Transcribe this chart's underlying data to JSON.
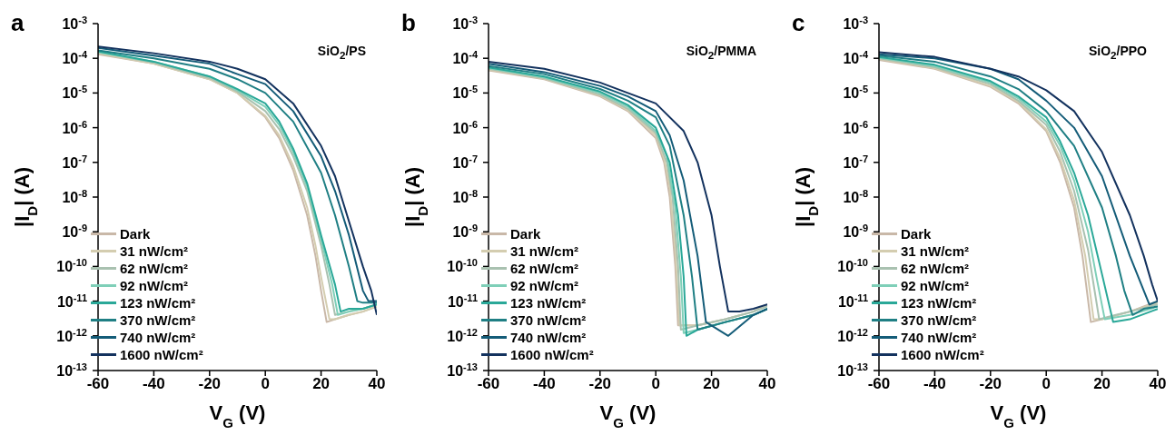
{
  "chart_data": [
    {
      "type": "line",
      "title": "a",
      "annotations": [
        "SiO$_{2}$/PS"
      ],
      "xlabel": "V$_{G}$ (V)",
      "ylabel": "|I$_{D}$| (A)",
      "log": "y",
      "legend": "bottom left",
      "xlim": [
        -60,
        40
      ],
      "xticks": [
        -60,
        -40,
        -20,
        0,
        20,
        40
      ],
      "ylim": [
        1e-13,
        0.001
      ],
      "yticks": [
        {
          "value": 1e-13,
          "label": "10$^{-13}$"
        },
        {
          "value": 1e-12,
          "label": "10$^{-12}$"
        },
        {
          "value": 1e-11,
          "label": "10$^{-11}$"
        },
        {
          "value": 1e-10,
          "label": "10$^{-10}$"
        },
        {
          "value": 1e-09,
          "label": "10$^{-9}$"
        },
        {
          "value": 1e-08,
          "label": "10$^{-8}$"
        },
        {
          "value": 1e-07,
          "label": "10$^{-7}$"
        },
        {
          "value": 1e-06,
          "label": "10$^{-6}$"
        },
        {
          "value": 1e-05,
          "label": "10$^{-5}$"
        },
        {
          "value": 0.0001,
          "label": "10$^{-4}$"
        },
        {
          "value": 0.001,
          "label": "10$^{-3}$"
        }
      ],
      "series": [
        {
          "name": "Dark",
          "color": "#c9b8a8",
          "x": [
            -60,
            -40,
            -20,
            -10,
            0,
            5,
            10,
            15,
            18,
            20,
            22,
            25,
            30,
            35,
            40
          ],
          "values": [
            0.00013,
            7e-05,
            2.5e-05,
            1e-05,
            2e-06,
            5e-07,
            6e-08,
            3e-09,
            2e-10,
            2e-11,
            2.5e-12,
            3e-12,
            4e-12,
            5e-12,
            7e-12
          ]
        },
        {
          "name": "31 nW/cm²",
          "color": "#d4cdb0",
          "x": [
            -60,
            -40,
            -20,
            -10,
            0,
            5,
            10,
            15,
            18,
            20,
            23,
            25,
            30,
            35,
            40
          ],
          "values": [
            0.00014,
            7e-05,
            2.5e-05,
            1e-05,
            2.2e-06,
            6e-07,
            8e-08,
            5e-09,
            4e-10,
            5e-11,
            3e-12,
            3e-12,
            4e-12,
            5e-12,
            7e-12
          ]
        },
        {
          "name": "62 nW/cm²",
          "color": "#a9c1b0",
          "x": [
            -60,
            -40,
            -20,
            -10,
            0,
            5,
            10,
            15,
            20,
            23,
            25,
            30,
            35,
            40
          ],
          "values": [
            0.00015,
            7.5e-05,
            2.7e-05,
            1.1e-05,
            3e-06,
            9e-07,
            1.5e-07,
            1.5e-08,
            4e-10,
            3e-11,
            4e-12,
            5e-12,
            6e-12,
            8e-12
          ]
        },
        {
          "name": "92 nW/cm²",
          "color": "#7fcfb8",
          "x": [
            -60,
            -40,
            -20,
            -10,
            0,
            5,
            10,
            15,
            20,
            24,
            26,
            30,
            35,
            40
          ],
          "values": [
            0.00015,
            8e-05,
            3e-05,
            1.2e-05,
            4e-06,
            1.2e-06,
            2e-07,
            2e-08,
            6e-10,
            3e-11,
            4e-12,
            5e-12,
            6e-12,
            8e-12
          ]
        },
        {
          "name": "123 nW/cm²",
          "color": "#2aa898",
          "x": [
            -60,
            -40,
            -20,
            -10,
            0,
            5,
            10,
            15,
            20,
            25,
            27,
            30,
            35,
            40
          ],
          "values": [
            0.00016,
            8e-05,
            3e-05,
            1.3e-05,
            5e-06,
            1.5e-06,
            2.5e-07,
            2.5e-08,
            8e-10,
            3e-11,
            5e-12,
            6e-12,
            6e-12,
            8e-12
          ]
        },
        {
          "name": "370 nW/cm²",
          "color": "#1f7f84",
          "x": [
            -60,
            -40,
            -20,
            -10,
            0,
            10,
            20,
            25,
            30,
            33,
            35,
            40
          ],
          "values": [
            0.00017,
            0.0001,
            5e-05,
            2.5e-05,
            1e-05,
            1.5e-06,
            5e-08,
            3e-09,
            1e-10,
            1e-11,
            9e-12,
            9e-12
          ]
        },
        {
          "name": "740 nW/cm²",
          "color": "#145c78",
          "x": [
            -60,
            -40,
            -20,
            -10,
            0,
            10,
            20,
            25,
            30,
            35,
            37,
            40
          ],
          "values": [
            0.0002,
            0.00012,
            7e-05,
            3.5e-05,
            1.8e-05,
            3e-06,
            1.5e-07,
            1.5e-08,
            8e-10,
            2e-11,
            1e-11,
            1e-11
          ]
        },
        {
          "name": "1600 nW/cm²",
          "color": "#13325e",
          "x": [
            -60,
            -40,
            -20,
            -10,
            0,
            10,
            20,
            25,
            30,
            35,
            38,
            40
          ],
          "values": [
            0.00022,
            0.00014,
            8e-05,
            5e-05,
            2.5e-05,
            5e-06,
            3e-07,
            4e-08,
            2e-09,
            1e-10,
            2e-11,
            4e-12
          ]
        }
      ]
    },
    {
      "type": "line",
      "title": "b",
      "annotations": [
        "SiO$_{2}$/PMMA"
      ],
      "xlabel": "V$_{G}$ (V)",
      "ylabel": "|I$_{D}$| (A)",
      "log": "y",
      "legend": "bottom left",
      "xlim": [
        -60,
        40
      ],
      "xticks": [
        -60,
        -40,
        -20,
        0,
        20,
        40
      ],
      "ylim": [
        1e-13,
        0.001
      ],
      "yticks": [
        {
          "value": 1e-13,
          "label": "10$^{-13}$"
        },
        {
          "value": 1e-12,
          "label": "10$^{-12}$"
        },
        {
          "value": 1e-11,
          "label": "10$^{-11}$"
        },
        {
          "value": 1e-10,
          "label": "10$^{-10}$"
        },
        {
          "value": 1e-09,
          "label": "10$^{-9}$"
        },
        {
          "value": 1e-08,
          "label": "10$^{-8}$"
        },
        {
          "value": 1e-07,
          "label": "10$^{-7}$"
        },
        {
          "value": 1e-06,
          "label": "10$^{-6}$"
        },
        {
          "value": 1e-05,
          "label": "10$^{-5}$"
        },
        {
          "value": 0.0001,
          "label": "10$^{-4}$"
        },
        {
          "value": 0.001,
          "label": "10$^{-3}$"
        }
      ],
      "series": [
        {
          "name": "Dark",
          "color": "#c9b8a8",
          "x": [
            -60,
            -40,
            -20,
            -10,
            0,
            3,
            5,
            7,
            8,
            15,
            25,
            35,
            40
          ],
          "values": [
            4.5e-05,
            2.5e-05,
            8e-06,
            3e-06,
            5e-07,
            1e-07,
            1e-08,
            1e-10,
            2e-12,
            2e-12,
            3e-12,
            5e-12,
            8e-12
          ]
        },
        {
          "name": "31 nW/cm²",
          "color": "#d4cdb0",
          "x": [
            -60,
            -40,
            -20,
            -10,
            0,
            3,
            5,
            7,
            8.5,
            15,
            25,
            35,
            40
          ],
          "values": [
            4.7e-05,
            2.6e-05,
            8.5e-06,
            3.2e-06,
            6e-07,
            1.3e-07,
            2e-08,
            3e-10,
            2e-12,
            2e-12,
            3e-12,
            5e-12,
            8e-12
          ]
        },
        {
          "name": "62 nW/cm²",
          "color": "#a9c1b0",
          "x": [
            -60,
            -40,
            -20,
            -10,
            0,
            4,
            6,
            8,
            9,
            15,
            25,
            35,
            40
          ],
          "values": [
            5e-05,
            2.7e-05,
            9e-06,
            3.5e-06,
            7e-07,
            1e-07,
            1e-08,
            1e-10,
            1.5e-12,
            2e-12,
            3e-12,
            5e-12,
            7e-12
          ]
        },
        {
          "name": "92 nW/cm²",
          "color": "#7fcfb8",
          "x": [
            -60,
            -40,
            -20,
            -10,
            0,
            4,
            7,
            9,
            10,
            15,
            25,
            35,
            40
          ],
          "values": [
            5.2e-05,
            2.8e-05,
            1e-05,
            4e-06,
            8e-07,
            1.5e-07,
            5e-09,
            5e-11,
            1.2e-12,
            1.5e-12,
            2.5e-12,
            4e-12,
            6e-12
          ]
        },
        {
          "name": "123 nW/cm²",
          "color": "#2aa898",
          "x": [
            -60,
            -40,
            -20,
            -10,
            0,
            5,
            8,
            10,
            11,
            15,
            25,
            35,
            40
          ],
          "values": [
            5.5e-05,
            3e-05,
            1.1e-05,
            4.5e-06,
            1e-06,
            1e-07,
            3e-09,
            5e-11,
            1e-12,
            1.5e-12,
            2.5e-12,
            4e-12,
            6e-12
          ]
        },
        {
          "name": "370 nW/cm²",
          "color": "#1f7f84",
          "x": [
            -60,
            -40,
            -20,
            -10,
            0,
            5,
            10,
            13,
            15,
            25,
            35,
            40
          ],
          "values": [
            6e-05,
            3.5e-05,
            1.3e-05,
            6e-06,
            2e-06,
            3e-07,
            3e-09,
            5e-11,
            1.5e-12,
            2.5e-12,
            4e-12,
            6e-12
          ]
        },
        {
          "name": "740 nW/cm²",
          "color": "#145c78",
          "x": [
            -60,
            -40,
            -20,
            -10,
            0,
            5,
            10,
            15,
            18,
            26,
            35,
            40
          ],
          "values": [
            7e-05,
            4e-05,
            1.6e-05,
            8e-06,
            3e-06,
            6e-07,
            3e-08,
            2e-10,
            2.5e-12,
            1e-12,
            4e-12,
            6e-12
          ]
        },
        {
          "name": "1600 nW/cm²",
          "color": "#13325e",
          "x": [
            -60,
            -40,
            -20,
            -10,
            0,
            10,
            15,
            20,
            23,
            26,
            30,
            35,
            40
          ],
          "values": [
            8e-05,
            5e-05,
            2e-05,
            1e-05,
            5e-06,
            8e-07,
            1e-07,
            3e-09,
            1e-10,
            5e-12,
            5e-12,
            6e-12,
            8e-12
          ]
        }
      ]
    },
    {
      "type": "line",
      "title": "c",
      "annotations": [
        "SiO$_{2}$/PPO"
      ],
      "xlabel": "V$_{G}$ (V)",
      "ylabel": "|I$_{D}$| (A)",
      "log": "y",
      "legend": "bottom left",
      "xlim": [
        -60,
        40
      ],
      "xticks": [
        -60,
        -40,
        -20,
        0,
        20,
        40
      ],
      "ylim": [
        1e-13,
        0.001
      ],
      "yticks": [
        {
          "value": 1e-13,
          "label": "10$^{-13}$"
        },
        {
          "value": 1e-12,
          "label": "10$^{-12}$"
        },
        {
          "value": 1e-11,
          "label": "10$^{-11}$"
        },
        {
          "value": 1e-10,
          "label": "10$^{-10}$"
        },
        {
          "value": 1e-09,
          "label": "10$^{-9}$"
        },
        {
          "value": 1e-08,
          "label": "10$^{-8}$"
        },
        {
          "value": 1e-07,
          "label": "10$^{-7}$"
        },
        {
          "value": 1e-06,
          "label": "10$^{-6}$"
        },
        {
          "value": 1e-05,
          "label": "10$^{-5}$"
        },
        {
          "value": 0.0001,
          "label": "10$^{-4}$"
        },
        {
          "value": 0.001,
          "label": "10$^{-3}$"
        }
      ],
      "series": [
        {
          "name": "Dark",
          "color": "#c9b8a8",
          "x": [
            -60,
            -40,
            -20,
            -10,
            0,
            5,
            10,
            13,
            16,
            20,
            30,
            40
          ],
          "values": [
            9e-05,
            5e-05,
            1.5e-05,
            5e-06,
            8e-07,
            1e-07,
            5e-09,
            2e-10,
            2.5e-12,
            3e-12,
            5e-12,
            1e-11
          ]
        },
        {
          "name": "31 nW/cm²",
          "color": "#d4cdb0",
          "x": [
            -60,
            -40,
            -20,
            -10,
            0,
            5,
            10,
            14,
            17,
            20,
            30,
            40
          ],
          "values": [
            9.5e-05,
            5.2e-05,
            1.6e-05,
            5.5e-06,
            9e-07,
            1.3e-07,
            8e-09,
            2e-10,
            3e-12,
            3e-12,
            5e-12,
            9e-12
          ]
        },
        {
          "name": "62 nW/cm²",
          "color": "#a9c1b0",
          "x": [
            -60,
            -40,
            -20,
            -10,
            0,
            5,
            10,
            15,
            19,
            25,
            30,
            40
          ],
          "values": [
            0.0001,
            5.5e-05,
            1.8e-05,
            6e-06,
            1.2e-06,
            2e-07,
            1.5e-08,
            3e-10,
            3e-12,
            4e-12,
            5e-12,
            8e-12
          ]
        },
        {
          "name": "92 nW/cm²",
          "color": "#7fcfb8",
          "x": [
            -60,
            -40,
            -20,
            -10,
            0,
            5,
            10,
            15,
            18,
            21,
            30,
            40
          ],
          "values": [
            0.000105,
            6e-05,
            2e-05,
            7e-06,
            1.5e-06,
            3e-07,
            3e-08,
            1e-09,
            5e-11,
            3e-12,
            4e-12,
            7e-12
          ]
        },
        {
          "name": "123 nW/cm²",
          "color": "#2aa898",
          "x": [
            -60,
            -40,
            -20,
            -10,
            0,
            5,
            10,
            15,
            20,
            24,
            30,
            40
          ],
          "values": [
            0.00011,
            6.5e-05,
            2.2e-05,
            8e-06,
            2e-06,
            4e-07,
            5e-08,
            3e-09,
            6e-11,
            2.5e-12,
            3e-12,
            6e-12
          ]
        },
        {
          "name": "370 nW/cm²",
          "color": "#1f7f84",
          "x": [
            -60,
            -40,
            -20,
            -10,
            0,
            10,
            20,
            25,
            28,
            31,
            35,
            40
          ],
          "values": [
            0.00012,
            8e-05,
            3e-05,
            1.3e-05,
            3e-06,
            3e-07,
            5e-09,
            2e-10,
            2e-11,
            4e-12,
            6e-12,
            7e-12
          ]
        },
        {
          "name": "740 nW/cm²",
          "color": "#145c78",
          "x": [
            -60,
            -40,
            -20,
            -10,
            0,
            10,
            20,
            30,
            35,
            37,
            40
          ],
          "values": [
            0.00013,
            0.0001,
            5e-05,
            2.5e-05,
            6e-06,
            1e-06,
            4e-08,
            2e-10,
            2e-11,
            8e-12,
            1e-11
          ]
        },
        {
          "name": "1600 nW/cm²",
          "color": "#13325e",
          "x": [
            -60,
            -40,
            -20,
            -10,
            0,
            10,
            20,
            30,
            35,
            38,
            40
          ],
          "values": [
            0.00015,
            0.00011,
            5e-05,
            3e-05,
            1.2e-05,
            3e-06,
            2e-07,
            3e-09,
            2e-10,
            3e-11,
            1e-11
          ]
        }
      ]
    }
  ]
}
